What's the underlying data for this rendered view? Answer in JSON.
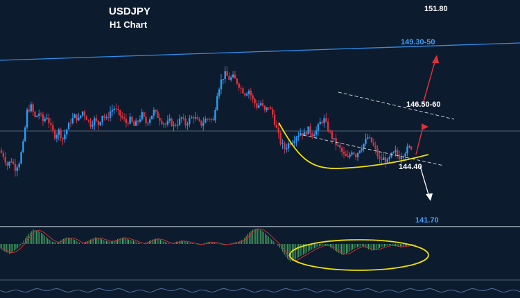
{
  "chart_data": {
    "type": "candlestick",
    "title": "USDJPY",
    "subtitle": "H1 Chart",
    "colors": {
      "background": "#0d1b2e",
      "bull_candle": "#2a9df4",
      "bear_candle": "#e0303a",
      "trendline": "#2f8fe8",
      "channel": "#d8dde6",
      "curve": "#f0e000",
      "arrow_up": "#e0303a",
      "arrow_down": "#ffffff",
      "osc_hist": "#4fc36a",
      "osc_line": "#c83030"
    },
    "levels": [
      {
        "label": "151.80",
        "color": "#ffffff"
      },
      {
        "label": "149.30-50",
        "color": "#3fa0ff"
      },
      {
        "label": "146.50-60",
        "color": "#ffffff"
      },
      {
        "label": "144.40",
        "color": "#ffffff"
      },
      {
        "label": "141.70",
        "color": "#3fa0ff"
      }
    ],
    "price_path": [
      145.2,
      144.9,
      144.3,
      144.6,
      144.1,
      144.5,
      145.6,
      147.6,
      147.9,
      147.2,
      147.5,
      147.0,
      147.3,
      146.6,
      146.1,
      146.4,
      145.9,
      146.5,
      147.0,
      147.3,
      147.1,
      147.6,
      147.2,
      146.8,
      147.1,
      146.8,
      147.4,
      147.1,
      147.6,
      147.8,
      147.5,
      147.2,
      146.9,
      147.1,
      146.7,
      147.0,
      147.4,
      146.9,
      147.2,
      147.6,
      147.3,
      147.0,
      146.8,
      147.0,
      146.7,
      146.9,
      147.2,
      146.8,
      147.1,
      147.3,
      147.0,
      146.8,
      147.1,
      147.2,
      147.0,
      148.7,
      149.5,
      149.9,
      149.6,
      149.7,
      149.4,
      149.0,
      148.7,
      148.9,
      148.3,
      147.9,
      148.1,
      147.6,
      147.9,
      147.4,
      146.5,
      145.7,
      145.3,
      145.6,
      145.8,
      146.1,
      146.3,
      146.2,
      146.5,
      146.2,
      146.4,
      146.9,
      147.1,
      146.5,
      146.0,
      145.6,
      145.3,
      144.9,
      144.7,
      145.2,
      144.9,
      145.3,
      145.6,
      146.0,
      145.7,
      145.2,
      144.6,
      144.7,
      144.5,
      144.9,
      145.1,
      144.8,
      145.0,
      145.3,
      145.4
    ],
    "oscillator": [
      -0.4,
      -0.7,
      -0.9,
      -0.6,
      -0.3,
      0.3,
      0.9,
      1.3,
      1.2,
      0.9,
      0.5,
      0.2,
      0.1,
      0.4,
      0.6,
      0.5,
      0.3,
      0.0,
      0.2,
      0.4,
      0.6,
      0.5,
      0.3,
      0.2,
      0.3,
      0.5,
      0.6,
      0.4,
      0.3,
      0.1,
      0.0,
      0.2,
      0.4,
      0.5,
      0.3,
      0.1,
      0.0,
      0.2,
      0.3,
      0.2,
      0.1,
      0.0,
      -0.1,
      0.1,
      0.2,
      0.1,
      0.0,
      -0.1,
      0.0,
      0.1,
      0.2,
      0.4,
      0.9,
      1.3,
      1.4,
      1.2,
      0.8,
      0.4,
      0.0,
      -0.5,
      -1.2,
      -1.6,
      -1.4,
      -1.1,
      -0.9,
      -0.6,
      -0.4,
      -0.2,
      -0.1,
      -0.2,
      -0.5,
      -0.8,
      -1.0,
      -0.8,
      -0.5,
      -0.3,
      -0.2,
      -0.4,
      -0.6,
      -0.5,
      -0.3,
      -0.2,
      -0.1,
      -0.2,
      -0.3,
      -0.2,
      -0.1,
      -0.1
    ]
  }
}
